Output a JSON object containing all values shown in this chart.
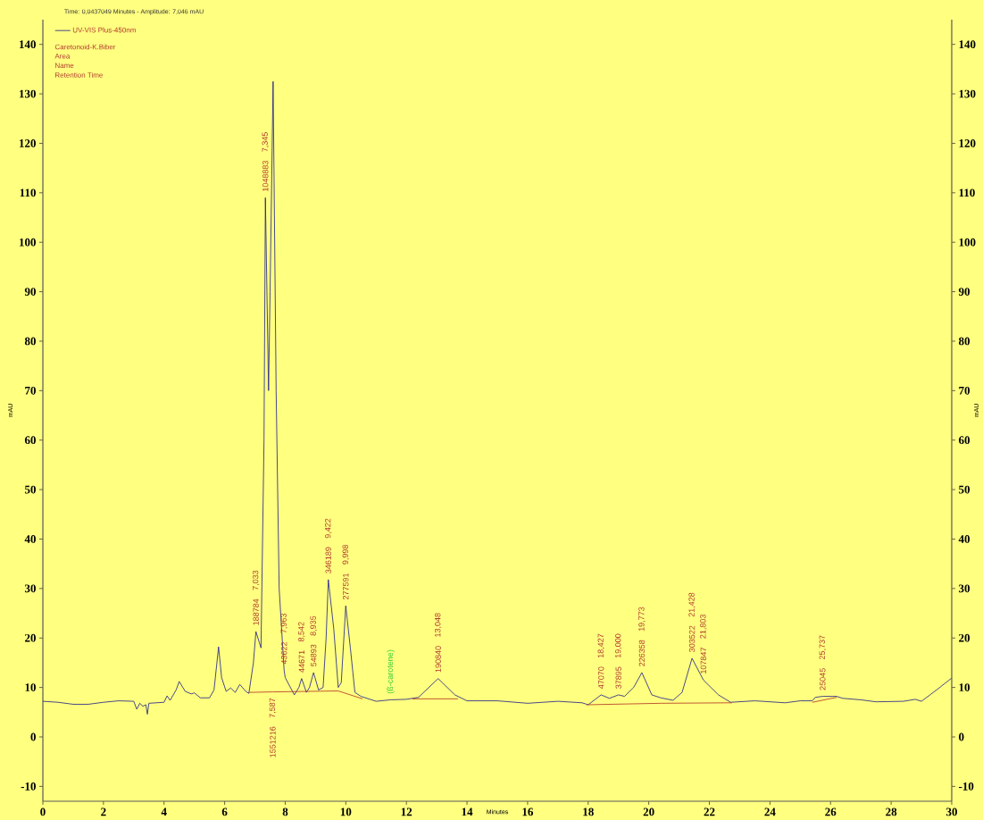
{
  "chart_data": {
    "type": "line",
    "title": "Time: 0,0437049 Minutes - Amplitude: 7,046 mAU",
    "xlabel": "Minutes",
    "ylabel": "mAU",
    "y2label": "mAU",
    "xlim": [
      0,
      30
    ],
    "xticks": [
      0,
      2,
      4,
      6,
      8,
      10,
      12,
      14,
      16,
      18,
      20,
      22,
      24,
      26,
      28,
      30
    ],
    "ylim": [
      -13,
      145
    ],
    "yticks": [
      -10,
      0,
      10,
      20,
      30,
      40,
      50,
      60,
      70,
      80,
      90,
      100,
      110,
      120,
      130,
      140
    ],
    "y2lim": [
      -13,
      145
    ],
    "y2ticks": [
      -10,
      0,
      10,
      20,
      30,
      40,
      50,
      60,
      70,
      80,
      90,
      100,
      110,
      120,
      130,
      140
    ],
    "legend": "top left",
    "marker": "none",
    "grid": false,
    "series": [
      {
        "name": "UV-VIS Plus-450nm",
        "color": "#1c1c8c",
        "x": [
          0,
          0.5,
          1,
          1.5,
          2,
          2.5,
          3,
          3.1,
          3.2,
          3.3,
          3.4,
          3.45,
          3.5,
          4.0,
          4.1,
          4.2,
          4.4,
          4.5,
          4.7,
          4.9,
          5.0,
          5.2,
          5.5,
          5.65,
          5.8,
          5.9,
          6.05,
          6.2,
          6.35,
          6.5,
          6.7,
          6.8,
          6.95,
          7.033,
          7.15,
          7.2,
          7.3,
          7.345,
          7.45,
          7.5,
          7.6,
          7.7,
          7.8,
          7.963,
          8.0,
          8.3,
          8.45,
          8.542,
          8.7,
          8.8,
          8.935,
          9.1,
          9.25,
          9.35,
          9.422,
          9.6,
          9.75,
          9.85,
          9.998,
          10.15,
          10.3,
          10.5,
          11,
          11.48,
          12,
          12.4,
          13.048,
          13.6,
          14,
          15,
          16,
          17,
          17.8,
          18.0,
          18.427,
          18.7,
          19.0,
          19.2,
          19.5,
          19.773,
          20.1,
          20.4,
          20.8,
          21.1,
          21.428,
          21.803,
          22.3,
          22.7,
          23.5,
          24.5,
          25.0,
          25.4,
          25.5,
          25.737,
          26.2,
          26.4,
          27,
          27.5,
          28.4,
          28.8,
          29,
          29.5,
          30
        ],
        "values": [
          7.2,
          7.0,
          6.6,
          6.6,
          7.0,
          7.3,
          7.2,
          5.6,
          6.8,
          6.2,
          6.5,
          4.6,
          6.8,
          7.0,
          8.3,
          7.4,
          9.5,
          11.2,
          9.2,
          8.7,
          8.9,
          7.9,
          7.9,
          9.5,
          18.2,
          12,
          9.2,
          9.9,
          9.0,
          10.6,
          9.2,
          8.8,
          15,
          21.3,
          19,
          18,
          60,
          109,
          70,
          90,
          132.5,
          70,
          30,
          13.5,
          12,
          8.5,
          10,
          11.8,
          9,
          10,
          13,
          9.5,
          10,
          20,
          31.8,
          22,
          10,
          11,
          26.5,
          18,
          9,
          8.2,
          7.2,
          7.5,
          7.6,
          8.0,
          11.8,
          8.5,
          7.3,
          7.3,
          6.8,
          7.2,
          6.9,
          6.5,
          8.5,
          7.8,
          8.5,
          8.2,
          10,
          13,
          8.5,
          7.9,
          7.4,
          9,
          15.9,
          11.5,
          8.5,
          7.0,
          7.3,
          6.9,
          7.3,
          7.3,
          8.0,
          8.2,
          8.2,
          7.8,
          7.5,
          7.1,
          7.2,
          7.6,
          7.2,
          9.5,
          11.9
        ]
      },
      {
        "color": "#b03020",
        "x": [
          6.8,
          7.587,
          9.75,
          10.55,
          10.6,
          12.2,
          13.7,
          13.75,
          17.95,
          20.4,
          22.75,
          22.8,
          25.4,
          26.2
        ],
        "values": [
          9.0,
          9.1,
          9.3,
          7.7,
          null,
          7.7,
          7.7,
          null,
          6.5,
          6.8,
          6.9,
          null,
          7.0,
          8.0
        ]
      }
    ],
    "annotations": [
      "Caretonoid-K.Biber",
      "Area",
      "Name",
      "Retention Time",
      {
        "text": "(ß-carotene)",
        "x": 11.48,
        "y": 7.5
      },
      {
        "text": "1048883",
        "x": 7.345,
        "y": 109
      },
      "7,345",
      {
        "text": "188784",
        "x": 7.033,
        "y": 21.3
      },
      "7,033",
      {
        "text": "7,587",
        "x": 7.587,
        "y": 9.1
      },
      "1551216",
      {
        "text": "43622",
        "x": 7.963,
        "y": 13.5
      },
      "7,963",
      {
        "text": "44671",
        "x": 8.542,
        "y": 11.8
      },
      "8,542",
      {
        "text": "54893",
        "x": 8.935,
        "y": 13
      },
      "8,935",
      {
        "text": "346189",
        "x": 9.422,
        "y": 31.8
      },
      "9,422",
      {
        "text": "277591",
        "x": 9.998,
        "y": 26.5
      },
      "9,998",
      {
        "text": "190840",
        "x": 13.048,
        "y": 11.8
      },
      "13,048",
      {
        "text": "47070",
        "x": 18.427,
        "y": 8.5
      },
      "18,427",
      {
        "text": "37895",
        "x": 19.0,
        "y": 8.5
      },
      "19,000",
      {
        "text": "226358",
        "x": 19.773,
        "y": 13
      },
      "19,773",
      {
        "text": "303522",
        "x": 21.428,
        "y": 15.9
      },
      "21,428",
      {
        "text": "107847",
        "x": 21.803,
        "y": 11.5
      },
      "21,803",
      {
        "text": "25045",
        "x": 25.737,
        "y": 8.2
      },
      "25,737"
    ]
  }
}
